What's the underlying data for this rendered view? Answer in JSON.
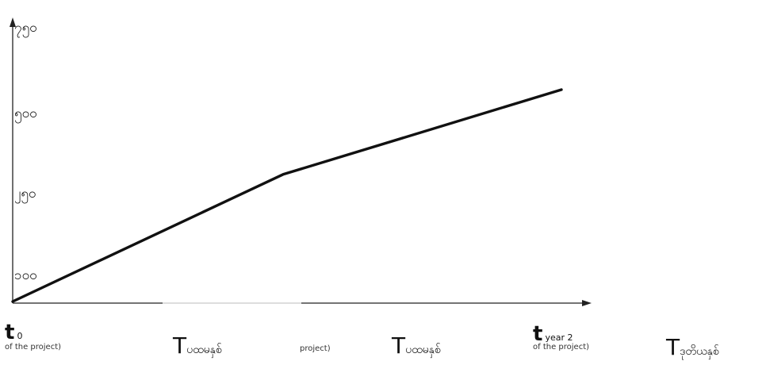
{
  "chart_data": {
    "type": "line",
    "y_ticks": [
      "၁၀၀",
      "၂၅၀",
      "၅၀၀",
      "၇၅၀"
    ],
    "y_tick_values": [
      100,
      250,
      500,
      750
    ],
    "ylim": [
      30,
      800
    ],
    "series": [
      {
        "points": [
          {
            "x": 0,
            "y": 30
          },
          {
            "x": 1,
            "y": 330
          },
          {
            "x": 2,
            "y": 530
          }
        ]
      }
    ],
    "x_markers": {
      "t0": {
        "main": "t",
        "sub": "0",
        "note": "of the project)"
      },
      "mid_note": "project)",
      "t_year2": {
        "main": "t",
        "sub": "year 2",
        "note": "of the project)"
      }
    },
    "period_labels": [
      {
        "main": "T",
        "sub": "ပထမနှစ်"
      },
      {
        "main": "T",
        "sub": "ပထမနှစ်"
      },
      {
        "main": "T",
        "sub": "ဒုတိယနှစ်"
      }
    ]
  }
}
